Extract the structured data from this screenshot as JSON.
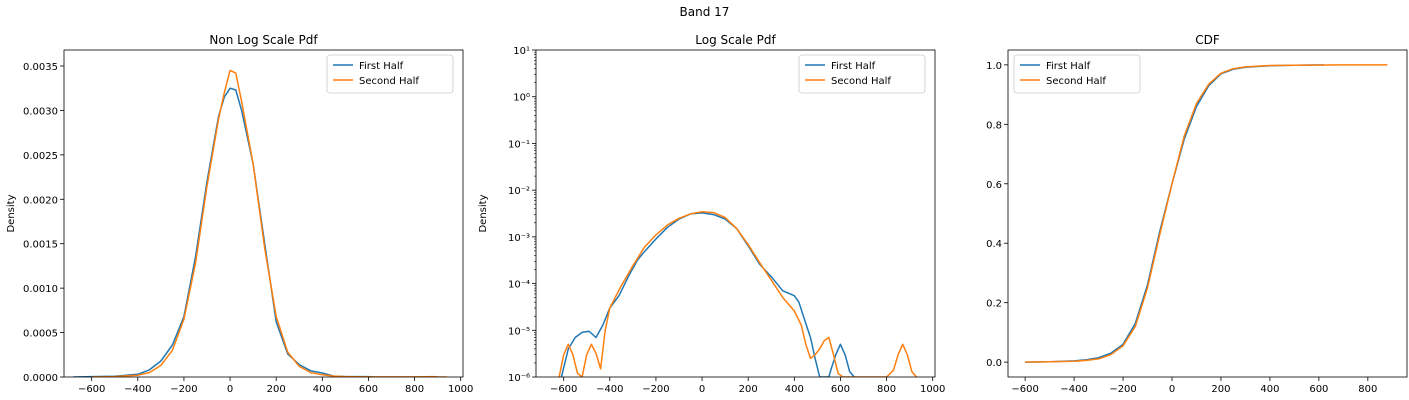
{
  "figure": {
    "title": "Band 17"
  },
  "colors": {
    "first": "#1f77b4",
    "second": "#ff7f0e"
  },
  "chart_data": [
    {
      "type": "line",
      "title": "Non Log Scale Pdf",
      "xlabel": "",
      "ylabel": "Density",
      "xlim": [
        -720,
        1010
      ],
      "ylim": [
        0,
        0.00368
      ],
      "xticks": [
        -600,
        -400,
        -200,
        0,
        200,
        400,
        600,
        800,
        1000
      ],
      "yticks": [
        0,
        0.0005,
        0.001,
        0.0015,
        0.002,
        0.0025,
        0.003,
        0.0035
      ],
      "ytick_labels": [
        "0.0000",
        "0.0005",
        "0.0010",
        "0.0015",
        "0.0020",
        "0.0025",
        "0.0030",
        "0.0035"
      ],
      "legend": "top-right",
      "series": [
        {
          "name": "First Half",
          "color": "#1f77b4",
          "x": [
            -680,
            -600,
            -500,
            -400,
            -350,
            -300,
            -250,
            -200,
            -150,
            -100,
            -50,
            -25,
            0,
            25,
            50,
            100,
            150,
            200,
            250,
            300,
            350,
            400,
            450,
            500,
            600,
            620
          ],
          "y": [
            0,
            4e-06,
            9e-06,
            3e-05,
            8e-05,
            0.00018,
            0.00036,
            0.00068,
            0.00135,
            0.0022,
            0.00293,
            0.00315,
            0.00325,
            0.00323,
            0.003,
            0.0024,
            0.0015,
            0.00062,
            0.00026,
            0.00014,
            7e-05,
            4.5e-05,
            1e-05,
            5e-06,
            5e-06,
            0
          ]
        },
        {
          "name": "Second Half",
          "color": "#ff7f0e",
          "x": [
            -600,
            -500,
            -400,
            -350,
            -300,
            -250,
            -200,
            -150,
            -100,
            -50,
            -25,
            0,
            25,
            50,
            100,
            150,
            200,
            250,
            300,
            350,
            400,
            450,
            500,
            600,
            700,
            800,
            880,
            900,
            940
          ],
          "y": [
            0,
            4e-06,
            2e-05,
            5e-05,
            0.00013,
            0.0003,
            0.00065,
            0.00128,
            0.00215,
            0.0029,
            0.0032,
            0.00345,
            0.00342,
            0.0031,
            0.0024,
            0.00145,
            0.00068,
            0.00028,
            0.00012,
            5e-05,
            2.5e-05,
            1e-05,
            4e-06,
            1e-06,
            1e-06,
            1e-06,
            5e-06,
            1e-06,
            0
          ]
        }
      ]
    },
    {
      "type": "line",
      "title": "Log Scale Pdf",
      "xlabel": "",
      "ylabel": "Density",
      "yscale": "log",
      "xlim": [
        -720,
        1010
      ],
      "ylim": [
        1e-06,
        10
      ],
      "xticks": [
        -600,
        -400,
        -200,
        0,
        200,
        400,
        600,
        800,
        1000
      ],
      "yticks_exp": [
        -6,
        -5,
        -4,
        -3,
        -2,
        -1,
        0,
        1
      ],
      "legend": "top-right",
      "series": [
        {
          "name": "First Half",
          "color": "#1f77b4",
          "x": [
            -610,
            -580,
            -550,
            -520,
            -490,
            -460,
            -430,
            -400,
            -360,
            -320,
            -280,
            -250,
            -200,
            -150,
            -100,
            -50,
            0,
            50,
            100,
            150,
            200,
            250,
            300,
            350,
            400,
            420,
            450,
            470,
            490,
            510,
            530,
            550,
            560,
            580,
            600,
            620,
            640,
            660
          ],
          "y": [
            1e-06,
            4e-06,
            7e-06,
            9e-06,
            9.5e-06,
            7e-06,
            1.3e-05,
            3e-05,
            5.5e-05,
            0.00014,
            0.00032,
            0.00048,
            0.0009,
            0.0016,
            0.0024,
            0.0031,
            0.00325,
            0.003,
            0.0024,
            0.0015,
            0.00064,
            0.00026,
            0.00014,
            7e-05,
            5.5e-05,
            4e-05,
            1.4e-05,
            7e-06,
            2.5e-06,
            1e-06,
            1e-06,
            1e-06,
            1.5e-06,
            3e-06,
            5e-06,
            3e-06,
            1.3e-06,
            1e-06
          ]
        },
        {
          "name": "Second Half",
          "color": "#ff7f0e",
          "x": [
            -620,
            -600,
            -580,
            -560,
            -540,
            -520,
            -500,
            -480,
            -460,
            -440,
            -420,
            -400,
            -350,
            -300,
            -250,
            -200,
            -150,
            -100,
            -50,
            0,
            50,
            100,
            150,
            200,
            250,
            300,
            350,
            400,
            430,
            450,
            470,
            490,
            510,
            530,
            550,
            570,
            590,
            610,
            800,
            830,
            850,
            870,
            890,
            910,
            930
          ],
          "y": [
            1e-06,
            3e-06,
            5e-06,
            3e-06,
            1.2e-06,
            1e-06,
            3e-06,
            5e-06,
            3.2e-06,
            1.5e-06,
            1e-05,
            3e-05,
            9e-05,
            0.00024,
            0.0006,
            0.0011,
            0.0018,
            0.0025,
            0.0031,
            0.00345,
            0.0033,
            0.0026,
            0.0015,
            0.00068,
            0.00028,
            0.00012,
            5e-05,
            2.6e-05,
            1.3e-05,
            5e-06,
            2.5e-06,
            3e-06,
            4e-06,
            6e-06,
            7e-06,
            3e-06,
            1.2e-06,
            1e-06,
            1e-06,
            1.4e-06,
            3e-06,
            5e-06,
            3e-06,
            1.3e-06,
            1e-06
          ]
        }
      ]
    },
    {
      "type": "line",
      "title": "CDF",
      "xlabel": "",
      "ylabel": "",
      "xlim": [
        -670,
        960
      ],
      "ylim": [
        -0.05,
        1.05
      ],
      "xticks": [
        -600,
        -400,
        -200,
        0,
        200,
        400,
        600,
        800
      ],
      "yticks": [
        0,
        0.2,
        0.4,
        0.6,
        0.8,
        1.0
      ],
      "ytick_labels": [
        "0.0",
        "0.2",
        "0.4",
        "0.6",
        "0.8",
        "1.0"
      ],
      "legend": "top-left",
      "series": [
        {
          "name": "First Half",
          "color": "#1f77b4",
          "x": [
            -600,
            -500,
            -400,
            -350,
            -300,
            -250,
            -200,
            -150,
            -100,
            -50,
            0,
            50,
            100,
            150,
            200,
            250,
            300,
            400,
            500,
            620
          ],
          "y": [
            0,
            0.001,
            0.004,
            0.008,
            0.015,
            0.03,
            0.06,
            0.13,
            0.26,
            0.44,
            0.6,
            0.75,
            0.86,
            0.93,
            0.97,
            0.985,
            0.992,
            0.997,
            0.999,
            1.0
          ]
        },
        {
          "name": "Second Half",
          "color": "#ff7f0e",
          "x": [
            -600,
            -500,
            -400,
            -350,
            -300,
            -250,
            -200,
            -150,
            -100,
            -50,
            0,
            50,
            100,
            150,
            200,
            250,
            300,
            400,
            500,
            700,
            880
          ],
          "y": [
            0,
            0.001,
            0.003,
            0.006,
            0.011,
            0.025,
            0.055,
            0.12,
            0.25,
            0.43,
            0.6,
            0.76,
            0.87,
            0.935,
            0.972,
            0.987,
            0.993,
            0.998,
            0.999,
            1.0,
            1.0
          ]
        }
      ]
    }
  ]
}
